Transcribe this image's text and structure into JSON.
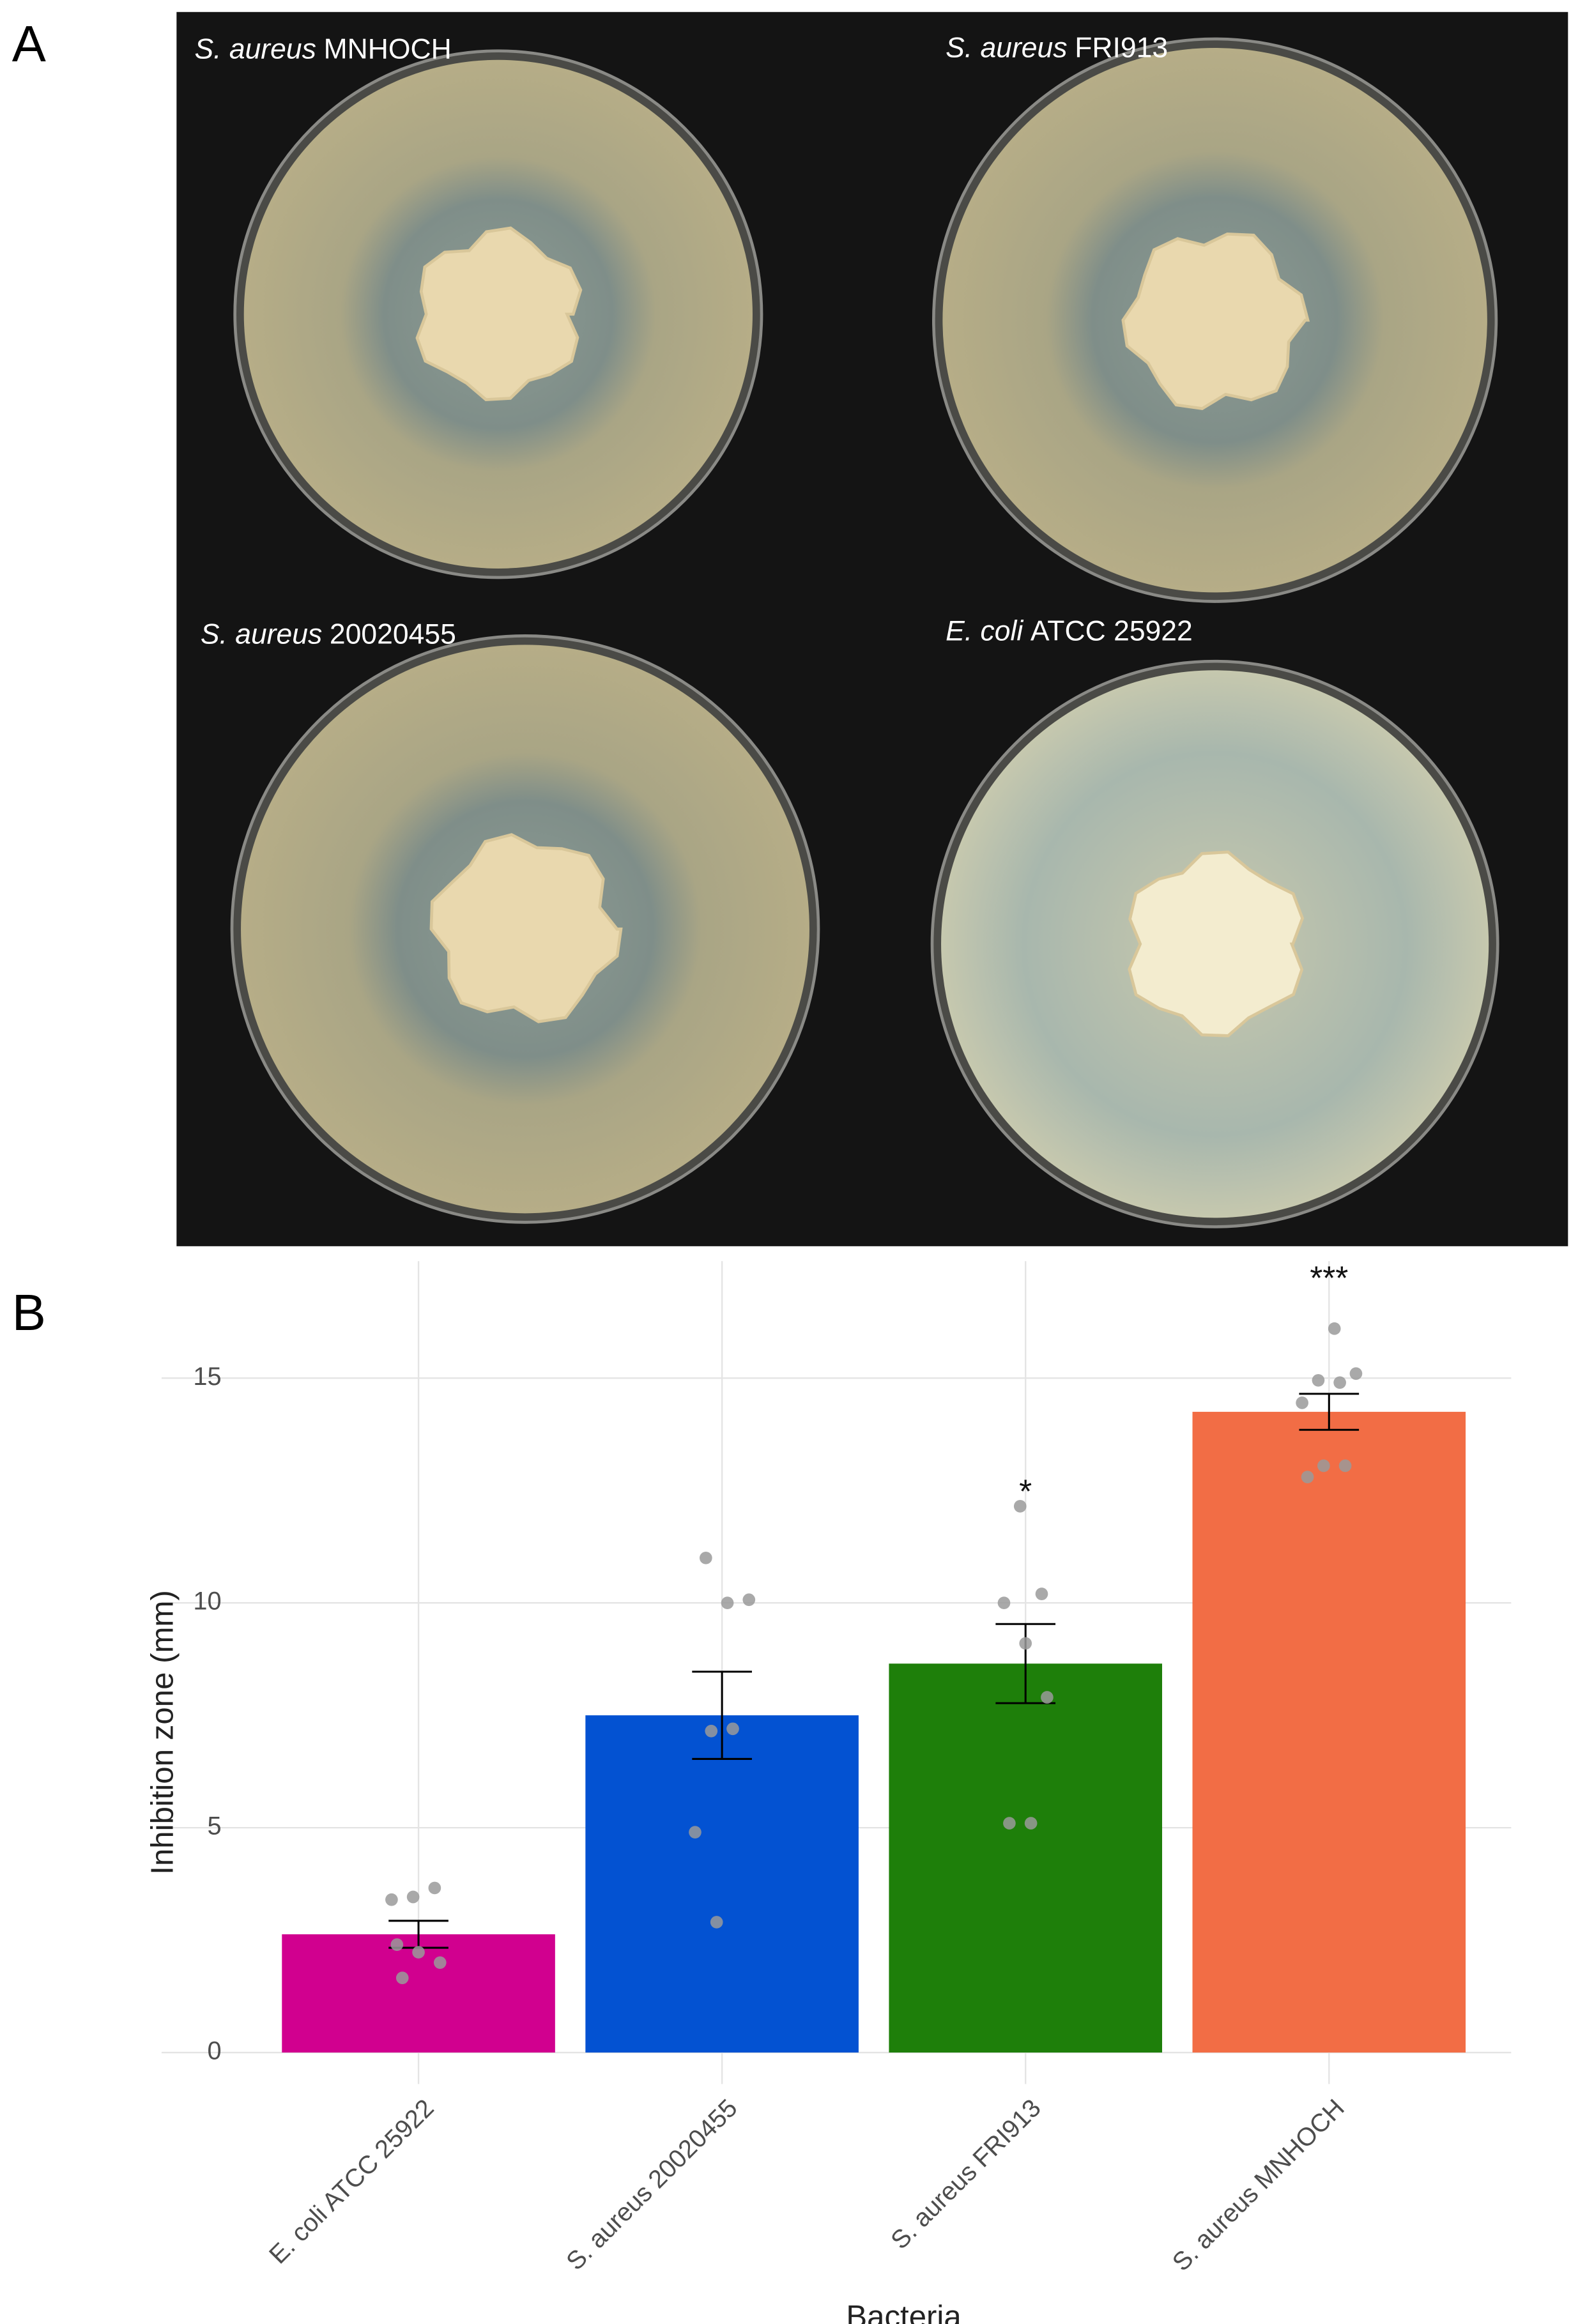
{
  "panel_a": {
    "label": "A",
    "plates": [
      {
        "species": "S. aureus",
        "strain": "MNHOCH"
      },
      {
        "species": "S. aureus",
        "strain": "FRI913"
      },
      {
        "species": "S. aureus",
        "strain": "20020455"
      },
      {
        "species": "E. coli",
        "strain": "ATCC 25922"
      }
    ]
  },
  "panel_b": {
    "label": "B"
  },
  "chart_data": {
    "type": "bar",
    "xlabel": "Bacteria",
    "ylabel": "Inhibition zone (mm)",
    "categories": [
      "E. coli ATCC 25922",
      "S. aureus 20020455",
      "S. aureus FRI913",
      "S. aureus MNHOCH"
    ],
    "values": [
      2.63,
      7.5,
      8.65,
      14.25
    ],
    "errors": [
      0.3,
      0.97,
      0.88,
      0.4
    ],
    "colors": [
      "#d1008f",
      "#0352d2",
      "#1e7f0a",
      "#f26d45"
    ],
    "points": [
      [
        3.4,
        3.46,
        3.66,
        2.4,
        2.23,
        2.0,
        1.66
      ],
      [
        11.0,
        10.0,
        10.07,
        7.15,
        7.2,
        4.9,
        2.9
      ],
      [
        12.15,
        10.2,
        10.0,
        9.1,
        7.9,
        5.1,
        5.1
      ],
      [
        16.1,
        15.1,
        14.95,
        14.9,
        14.45,
        13.05,
        13.05,
        12.8
      ]
    ],
    "point_color": "#9a9a9a",
    "annotations": [
      null,
      null,
      "*",
      "***"
    ],
    "ylim": [
      -0.7,
      17.6
    ],
    "yticks": [
      0,
      5,
      10,
      15
    ],
    "grid": true
  }
}
